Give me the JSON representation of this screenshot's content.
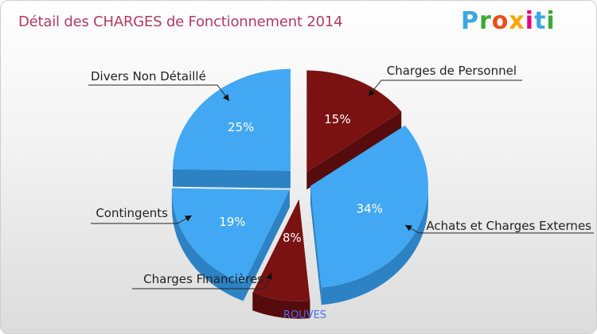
{
  "chart_data": {
    "type": "pie",
    "title": "Détail des CHARGES de Fonctionnement 2014",
    "subtitle": "ROUVES",
    "slices": [
      {
        "label": "Charges de Personnel",
        "value": 15,
        "pct_label": "15%",
        "color": "#7a1212",
        "side": "#560c0c"
      },
      {
        "label": "Achats et Charges Externes",
        "value": 34,
        "pct_label": "34%",
        "color": "#42a8f3",
        "side": "#2d82c4"
      },
      {
        "label": "Charges Financières",
        "value": 8,
        "pct_label": "8%",
        "color": "#7a1212",
        "side": "#560c0c"
      },
      {
        "label": "Contingents",
        "value": 19,
        "pct_label": "19%",
        "color": "#42a8f3",
        "side": "#2d82c4"
      },
      {
        "label": "Divers Non Détaillé",
        "value": 25,
        "pct_label": "25%",
        "color": "#42a8f3",
        "side": "#2d82c4"
      }
    ]
  },
  "logo": {
    "letters": [
      "P",
      "r",
      "o",
      "x",
      "i",
      "t",
      "i"
    ],
    "colors": [
      "#39a8e0",
      "#3aaa35",
      "#e94e1b",
      "#f7a600",
      "#e6007e",
      "#39a8e0",
      "#3aaa35"
    ]
  }
}
